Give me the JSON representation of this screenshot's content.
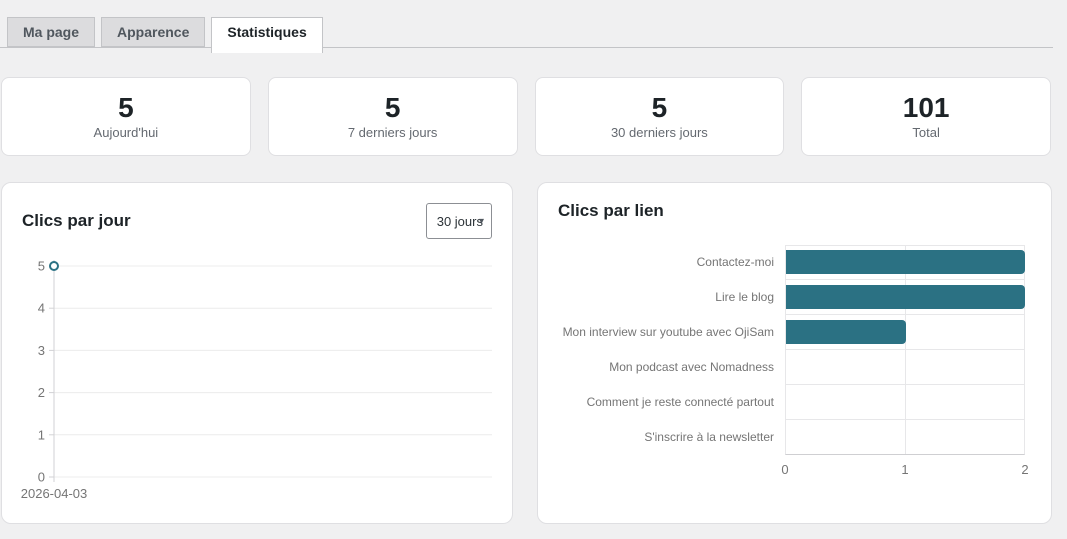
{
  "tabs": [
    {
      "label": "Ma page",
      "active": false
    },
    {
      "label": "Apparence",
      "active": false
    },
    {
      "label": "Statistiques",
      "active": true
    }
  ],
  "stats": [
    {
      "value": "5",
      "label": "Aujourd'hui"
    },
    {
      "value": "5",
      "label": "7 derniers jours"
    },
    {
      "value": "5",
      "label": "30 derniers jours"
    },
    {
      "value": "101",
      "label": "Total"
    }
  ],
  "clicks_per_day": {
    "title": "Clics par jour",
    "period_select": {
      "value": "30 jours"
    }
  },
  "clicks_per_link": {
    "title": "Clics par lien"
  },
  "colors": {
    "accent": "#2b7183",
    "page_bg": "#f0f0f1",
    "grid": "#ececec",
    "axis_line": "#d2d2d5",
    "axis_text": "#757575"
  },
  "chart_data": [
    {
      "type": "line",
      "title": "Clics par jour",
      "x": [
        "2026-04-03"
      ],
      "values": [
        5
      ],
      "ylim": [
        0,
        5
      ],
      "yticks": [
        0,
        1,
        2,
        3,
        4,
        5
      ],
      "color": "#2b7183",
      "grid": true,
      "legend": false
    },
    {
      "type": "bar",
      "orientation": "horizontal",
      "title": "Clics par lien",
      "categories": [
        "Contactez-moi",
        "Lire le blog",
        "Mon interview sur youtube avec OjiSam",
        "Mon podcast avec Nomadness",
        "Comment je reste connecté partout",
        "S'inscrire à la newsletter"
      ],
      "values": [
        2,
        2,
        1,
        0,
        0,
        0
      ],
      "xlim": [
        0,
        2
      ],
      "xticks": [
        0,
        1,
        2
      ],
      "color": "#2b7183",
      "grid": true
    }
  ]
}
